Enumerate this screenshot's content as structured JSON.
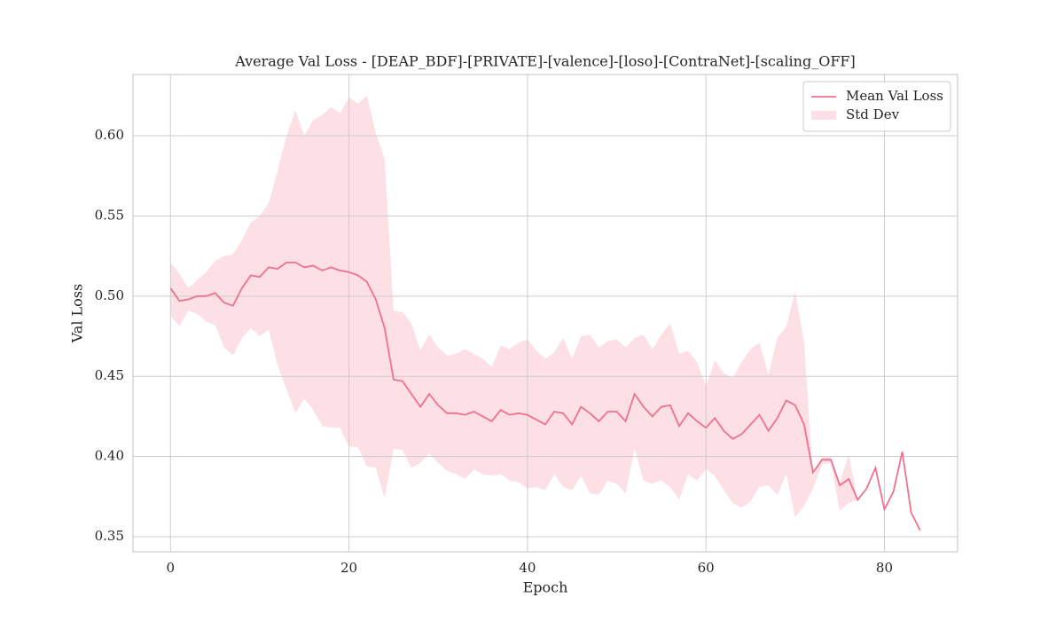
{
  "chart_data": {
    "type": "line",
    "title": "Average Val Loss - [DEAP_BDF]-[PRIVATE]-[valence]-[loso]-[ContraNet]-[scaling_OFF]",
    "x_label": "Epoch",
    "y_label": "Val Loss",
    "x": [
      0,
      1,
      2,
      3,
      4,
      5,
      6,
      7,
      8,
      9,
      10,
      11,
      12,
      13,
      14,
      15,
      16,
      17,
      18,
      19,
      20,
      21,
      22,
      23,
      24,
      25,
      26,
      27,
      28,
      29,
      30,
      31,
      32,
      33,
      34,
      35,
      36,
      37,
      38,
      39,
      40,
      41,
      42,
      43,
      44,
      45,
      46,
      47,
      48,
      49,
      50,
      51,
      52,
      53,
      54,
      55,
      56,
      57,
      58,
      59,
      60,
      61,
      62,
      63,
      64,
      65,
      66,
      67,
      68,
      69,
      70,
      71,
      72,
      73,
      74,
      75,
      76,
      77,
      78,
      79,
      80,
      81,
      82,
      83,
      84
    ],
    "series": [
      {
        "name": "Mean Val Loss",
        "color": "#f0718b",
        "values": [
          0.505,
          0.497,
          0.498,
          0.5,
          0.5,
          0.502,
          0.496,
          0.494,
          0.505,
          0.513,
          0.512,
          0.518,
          0.517,
          0.521,
          0.521,
          0.518,
          0.519,
          0.516,
          0.518,
          0.516,
          0.515,
          0.513,
          0.509,
          0.498,
          0.48,
          0.448,
          0.447,
          0.439,
          0.431,
          0.439,
          0.432,
          0.427,
          0.427,
          0.426,
          0.428,
          0.425,
          0.422,
          0.429,
          0.426,
          0.427,
          0.426,
          0.423,
          0.42,
          0.428,
          0.427,
          0.42,
          0.431,
          0.427,
          0.422,
          0.428,
          0.428,
          0.422,
          0.439,
          0.431,
          0.425,
          0.431,
          0.432,
          0.419,
          0.427,
          0.422,
          0.418,
          0.424,
          0.416,
          0.411,
          0.414,
          0.42,
          0.426,
          0.416,
          0.424,
          0.435,
          0.432,
          0.42,
          0.39,
          0.398,
          0.398,
          0.382,
          0.386,
          0.373,
          0.38,
          0.393,
          0.367,
          0.378,
          0.403,
          0.365,
          0.354
        ]
      }
    ],
    "band": {
      "name": "Std Dev",
      "color": "#fde0e6",
      "upper": [
        0.521,
        0.514,
        0.505,
        0.51,
        0.515,
        0.522,
        0.525,
        0.526,
        0.535,
        0.546,
        0.55,
        0.558,
        0.578,
        0.6,
        0.616,
        0.6,
        0.61,
        0.613,
        0.618,
        0.614,
        0.624,
        0.62,
        0.625,
        0.602,
        0.585,
        0.491,
        0.49,
        0.483,
        0.466,
        0.476,
        0.468,
        0.463,
        0.464,
        0.467,
        0.464,
        0.461,
        0.456,
        0.469,
        0.467,
        0.471,
        0.473,
        0.466,
        0.461,
        0.465,
        0.474,
        0.461,
        0.475,
        0.476,
        0.468,
        0.472,
        0.473,
        0.468,
        0.474,
        0.476,
        0.467,
        0.476,
        0.483,
        0.464,
        0.466,
        0.459,
        0.444,
        0.46,
        0.452,
        0.449,
        0.459,
        0.467,
        0.471,
        0.451,
        0.474,
        0.481,
        0.503,
        0.471,
        0.387,
        0.4,
        0.4,
        0.384,
        0.401,
        0.373,
        0.38,
        0.393,
        0.367,
        0.378,
        0.403,
        0.365,
        0.354
      ],
      "lower": [
        0.488,
        0.481,
        0.491,
        0.489,
        0.484,
        0.482,
        0.468,
        0.463,
        0.474,
        0.48,
        0.475,
        0.479,
        0.457,
        0.442,
        0.427,
        0.436,
        0.429,
        0.419,
        0.418,
        0.418,
        0.406,
        0.406,
        0.394,
        0.393,
        0.374,
        0.405,
        0.404,
        0.393,
        0.396,
        0.402,
        0.396,
        0.391,
        0.389,
        0.386,
        0.392,
        0.389,
        0.388,
        0.389,
        0.385,
        0.384,
        0.38,
        0.381,
        0.379,
        0.389,
        0.381,
        0.379,
        0.388,
        0.377,
        0.376,
        0.385,
        0.383,
        0.377,
        0.405,
        0.385,
        0.383,
        0.385,
        0.381,
        0.373,
        0.389,
        0.385,
        0.392,
        0.388,
        0.379,
        0.371,
        0.368,
        0.372,
        0.381,
        0.382,
        0.376,
        0.389,
        0.362,
        0.369,
        0.38,
        0.395,
        0.396,
        0.366,
        0.371,
        0.373,
        0.38,
        0.393,
        0.367,
        0.378,
        0.403,
        0.365,
        0.354
      ]
    },
    "xlim": [
      -4.2,
      88.2
    ],
    "ylim": [
      0.3406,
      0.6382
    ],
    "xticks": [
      0,
      20,
      40,
      60,
      80
    ],
    "yticks": [
      0.35,
      {
        "value": 0.4,
        "label": "0.40"
      },
      0.45,
      {
        "value": 0.5,
        "label": "0.50"
      },
      0.55,
      {
        "value": 0.6,
        "label": "0.60"
      }
    ],
    "grid": true,
    "legend": "upper right"
  }
}
